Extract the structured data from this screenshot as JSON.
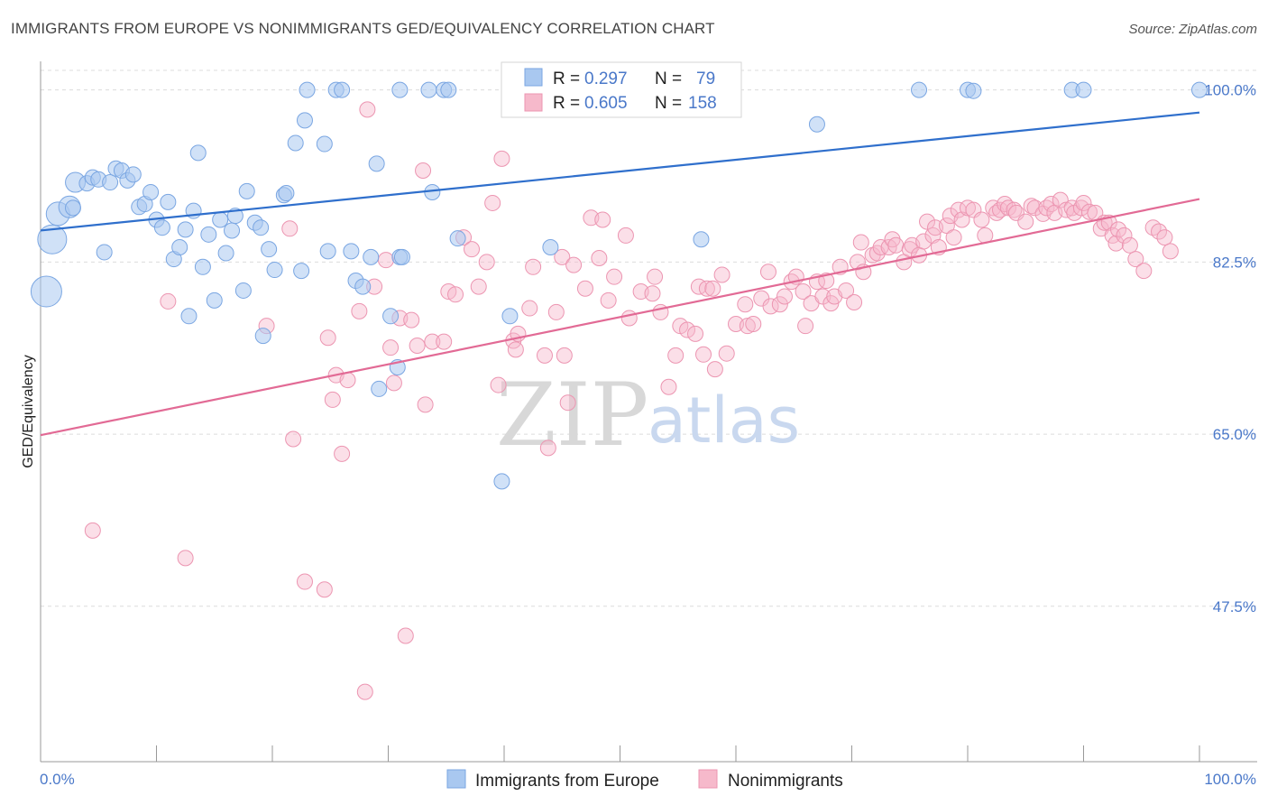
{
  "header": {
    "title": "IMMIGRANTS FROM EUROPE VS NONIMMIGRANTS GED/EQUIVALENCY CORRELATION CHART",
    "source": "Source: ZipAtlas.com"
  },
  "watermark": {
    "zip": "ZIP",
    "atlas": "atlas"
  },
  "legend_box": {
    "rows": [
      {
        "r_label": "R =",
        "r_value": "0.297",
        "n_label": "N =",
        "n_value": "79"
      },
      {
        "r_label": "R =",
        "r_value": "0.605",
        "n_label": "N =",
        "n_value": "158"
      }
    ]
  },
  "chart_data": {
    "type": "scatter",
    "title": "IMMIGRANTS FROM EUROPE VS NONIMMIGRANTS GED/EQUIVALENCY CORRELATION CHART",
    "xlabel": "",
    "ylabel": "GED/Equivalency",
    "xlim": [
      0,
      100
    ],
    "ylim": [
      31.7,
      102.9
    ],
    "x_tick_labels": [
      "0.0%",
      "100.0%"
    ],
    "y_ticks": [
      100.0,
      82.5,
      65.0,
      47.5
    ],
    "y_tick_labels": [
      "100.0%",
      "82.5%",
      "65.0%",
      "47.5%"
    ],
    "grid": true,
    "legend_placement": "bottom-center",
    "colors": {
      "europe": "#a9c8f0",
      "europe_line": "#2f6fcc",
      "non": "#f6b9cb",
      "non_line": "#e26a95",
      "accent_text": "#4a78c9"
    },
    "series": [
      {
        "name": "Immigrants from Europe",
        "r": 0.297,
        "n": 79,
        "trend": [
          [
            0,
            85.7
          ],
          [
            100,
            97.7
          ]
        ],
        "points": [
          [
            1.0,
            84.8
          ],
          [
            0.5,
            79.5
          ],
          [
            1.5,
            87.4
          ],
          [
            2.5,
            88.1
          ],
          [
            2.8,
            88.0
          ],
          [
            3.0,
            90.6
          ],
          [
            4.0,
            90.5
          ],
          [
            4.5,
            91.1
          ],
          [
            5.0,
            90.9
          ],
          [
            5.5,
            83.5
          ],
          [
            6.0,
            90.6
          ],
          [
            6.5,
            92.0
          ],
          [
            7.0,
            91.8
          ],
          [
            7.5,
            90.8
          ],
          [
            8.0,
            91.4
          ],
          [
            8.5,
            88.1
          ],
          [
            9.0,
            88.4
          ],
          [
            9.5,
            89.6
          ],
          [
            10.0,
            86.8
          ],
          [
            10.5,
            86.0
          ],
          [
            11.0,
            88.6
          ],
          [
            11.5,
            82.8
          ],
          [
            12.0,
            84.0
          ],
          [
            12.5,
            85.8
          ],
          [
            12.8,
            77.0
          ],
          [
            13.2,
            87.7
          ],
          [
            13.6,
            93.6
          ],
          [
            14.0,
            82.0
          ],
          [
            14.5,
            85.3
          ],
          [
            15.0,
            78.6
          ],
          [
            15.5,
            86.8
          ],
          [
            16.0,
            83.4
          ],
          [
            16.5,
            85.7
          ],
          [
            16.8,
            87.2
          ],
          [
            17.5,
            79.6
          ],
          [
            17.8,
            89.7
          ],
          [
            18.5,
            86.5
          ],
          [
            19.0,
            86.0
          ],
          [
            19.2,
            75.0
          ],
          [
            19.7,
            83.8
          ],
          [
            20.2,
            81.7
          ],
          [
            21.0,
            89.3
          ],
          [
            21.2,
            89.5
          ],
          [
            22.0,
            94.6
          ],
          [
            22.5,
            81.6
          ],
          [
            22.8,
            96.9
          ],
          [
            23.0,
            100.0
          ],
          [
            24.5,
            94.5
          ],
          [
            24.8,
            83.6
          ],
          [
            25.5,
            100.0
          ],
          [
            26.0,
            100.0
          ],
          [
            26.8,
            83.6
          ],
          [
            27.2,
            80.6
          ],
          [
            27.8,
            80.0
          ],
          [
            28.5,
            83.0
          ],
          [
            29.0,
            92.5
          ],
          [
            29.2,
            69.6
          ],
          [
            30.2,
            77.0
          ],
          [
            30.8,
            71.8
          ],
          [
            31.0,
            100.0
          ],
          [
            31.0,
            83.0
          ],
          [
            31.2,
            83.0
          ],
          [
            33.5,
            100.0
          ],
          [
            33.8,
            89.6
          ],
          [
            34.8,
            100.0
          ],
          [
            35.2,
            100.0
          ],
          [
            36.0,
            84.9
          ],
          [
            39.8,
            60.2
          ],
          [
            40.5,
            77.0
          ],
          [
            44.0,
            84.0
          ],
          [
            47.0,
            100.0
          ],
          [
            57.0,
            84.8
          ],
          [
            67.0,
            96.5
          ],
          [
            75.8,
            100.0
          ],
          [
            80.0,
            100.0
          ],
          [
            80.5,
            99.9
          ],
          [
            89.0,
            100.0
          ],
          [
            90.0,
            100.0
          ],
          [
            100.0,
            100.0
          ]
        ]
      },
      {
        "name": "Nonimmigrants",
        "r": 0.605,
        "n": 158,
        "trend": [
          [
            0,
            64.9
          ],
          [
            100,
            88.9
          ]
        ],
        "points": [
          [
            4.5,
            55.2
          ],
          [
            11.0,
            78.5
          ],
          [
            12.5,
            52.4
          ],
          [
            19.5,
            76.0
          ],
          [
            21.5,
            85.9
          ],
          [
            21.8,
            64.5
          ],
          [
            22.8,
            50.0
          ],
          [
            24.5,
            49.2
          ],
          [
            24.8,
            74.8
          ],
          [
            25.2,
            68.5
          ],
          [
            25.5,
            71.0
          ],
          [
            26.0,
            63.0
          ],
          [
            26.5,
            70.5
          ],
          [
            27.5,
            77.5
          ],
          [
            28.0,
            38.8
          ],
          [
            28.2,
            98.0
          ],
          [
            28.8,
            80.0
          ],
          [
            29.8,
            82.7
          ],
          [
            30.2,
            73.8
          ],
          [
            30.5,
            70.2
          ],
          [
            31.0,
            76.8
          ],
          [
            31.5,
            44.5
          ],
          [
            32.0,
            76.6
          ],
          [
            32.5,
            74.0
          ],
          [
            33.0,
            91.8
          ],
          [
            33.2,
            68.0
          ],
          [
            33.8,
            74.4
          ],
          [
            34.8,
            74.4
          ],
          [
            35.2,
            79.5
          ],
          [
            35.8,
            79.2
          ],
          [
            36.5,
            85.0
          ],
          [
            37.2,
            83.8
          ],
          [
            37.8,
            80.0
          ],
          [
            38.5,
            82.5
          ],
          [
            39.0,
            88.5
          ],
          [
            39.5,
            70.0
          ],
          [
            39.8,
            93.0
          ],
          [
            40.8,
            74.5
          ],
          [
            41.0,
            73.6
          ],
          [
            41.2,
            75.2
          ],
          [
            42.2,
            77.8
          ],
          [
            42.5,
            82.0
          ],
          [
            43.5,
            73.0
          ],
          [
            43.8,
            63.6
          ],
          [
            44.5,
            77.4
          ],
          [
            45.0,
            83.0
          ],
          [
            45.2,
            73.0
          ],
          [
            45.5,
            68.2
          ],
          [
            46.0,
            82.2
          ],
          [
            47.0,
            79.8
          ],
          [
            47.5,
            87.0
          ],
          [
            48.2,
            82.9
          ],
          [
            48.5,
            86.8
          ],
          [
            49.0,
            78.6
          ],
          [
            49.5,
            81.0
          ],
          [
            50.5,
            85.2
          ],
          [
            50.8,
            76.8
          ],
          [
            51.8,
            79.5
          ],
          [
            52.8,
            79.3
          ],
          [
            53.0,
            81.0
          ],
          [
            53.5,
            77.4
          ],
          [
            54.2,
            69.8
          ],
          [
            54.8,
            73.0
          ],
          [
            55.2,
            76.0
          ],
          [
            55.8,
            75.6
          ],
          [
            56.5,
            75.2
          ],
          [
            56.8,
            80.0
          ],
          [
            57.2,
            73.1
          ],
          [
            57.5,
            79.8
          ],
          [
            58.0,
            79.8
          ],
          [
            58.2,
            71.6
          ],
          [
            58.8,
            81.2
          ],
          [
            59.2,
            73.2
          ],
          [
            60.0,
            76.2
          ],
          [
            60.8,
            78.2
          ],
          [
            61.0,
            76.0
          ],
          [
            61.5,
            76.2
          ],
          [
            62.2,
            78.8
          ],
          [
            62.8,
            81.5
          ],
          [
            63.0,
            78.0
          ],
          [
            63.8,
            78.2
          ],
          [
            64.2,
            79.0
          ],
          [
            64.8,
            80.5
          ],
          [
            65.2,
            81.0
          ],
          [
            65.8,
            79.5
          ],
          [
            66.0,
            76.0
          ],
          [
            66.5,
            78.3
          ],
          [
            67.0,
            80.5
          ],
          [
            67.5,
            79.0
          ],
          [
            67.8,
            80.6
          ],
          [
            68.2,
            78.3
          ],
          [
            68.5,
            79.0
          ],
          [
            69.0,
            82.0
          ],
          [
            69.5,
            79.6
          ],
          [
            70.2,
            78.4
          ],
          [
            70.5,
            82.5
          ],
          [
            70.8,
            84.5
          ],
          [
            71.0,
            81.5
          ],
          [
            71.8,
            83.2
          ],
          [
            72.2,
            83.4
          ],
          [
            72.5,
            84.0
          ],
          [
            73.2,
            84.0
          ],
          [
            73.5,
            84.8
          ],
          [
            73.8,
            84.2
          ],
          [
            74.5,
            82.5
          ],
          [
            75.0,
            83.8
          ],
          [
            75.2,
            84.2
          ],
          [
            75.8,
            83.2
          ],
          [
            76.2,
            84.6
          ],
          [
            76.5,
            86.6
          ],
          [
            77.0,
            85.2
          ],
          [
            77.2,
            86.0
          ],
          [
            77.5,
            84.0
          ],
          [
            78.2,
            86.2
          ],
          [
            78.5,
            87.2
          ],
          [
            78.8,
            85.0
          ],
          [
            79.2,
            87.8
          ],
          [
            79.5,
            86.8
          ],
          [
            80.0,
            88.0
          ],
          [
            80.5,
            87.8
          ],
          [
            81.2,
            86.8
          ],
          [
            81.5,
            85.2
          ],
          [
            82.2,
            88.0
          ],
          [
            82.5,
            87.5
          ],
          [
            82.8,
            87.8
          ],
          [
            83.2,
            88.4
          ],
          [
            83.5,
            88.0
          ],
          [
            84.0,
            87.8
          ],
          [
            84.2,
            87.5
          ],
          [
            85.0,
            86.6
          ],
          [
            85.5,
            88.2
          ],
          [
            85.8,
            88.0
          ],
          [
            86.5,
            87.4
          ],
          [
            86.8,
            88.0
          ],
          [
            87.2,
            88.4
          ],
          [
            87.5,
            87.5
          ],
          [
            88.0,
            88.8
          ],
          [
            88.5,
            87.8
          ],
          [
            89.0,
            88.0
          ],
          [
            89.2,
            87.5
          ],
          [
            89.8,
            88.0
          ],
          [
            90.0,
            88.5
          ],
          [
            90.5,
            87.6
          ],
          [
            91.0,
            87.5
          ],
          [
            91.5,
            85.9
          ],
          [
            91.8,
            86.5
          ],
          [
            92.2,
            86.5
          ],
          [
            92.5,
            85.2
          ],
          [
            92.8,
            84.4
          ],
          [
            93.0,
            85.8
          ],
          [
            93.5,
            85.2
          ],
          [
            94.0,
            84.2
          ],
          [
            94.5,
            82.8
          ],
          [
            95.2,
            81.6
          ],
          [
            96.0,
            86.0
          ],
          [
            96.5,
            85.6
          ],
          [
            97.0,
            85.0
          ],
          [
            97.5,
            83.6
          ]
        ]
      }
    ]
  },
  "bottom_legend": [
    {
      "label": "Immigrants from Europe"
    },
    {
      "label": "Nonimmigrants"
    }
  ]
}
